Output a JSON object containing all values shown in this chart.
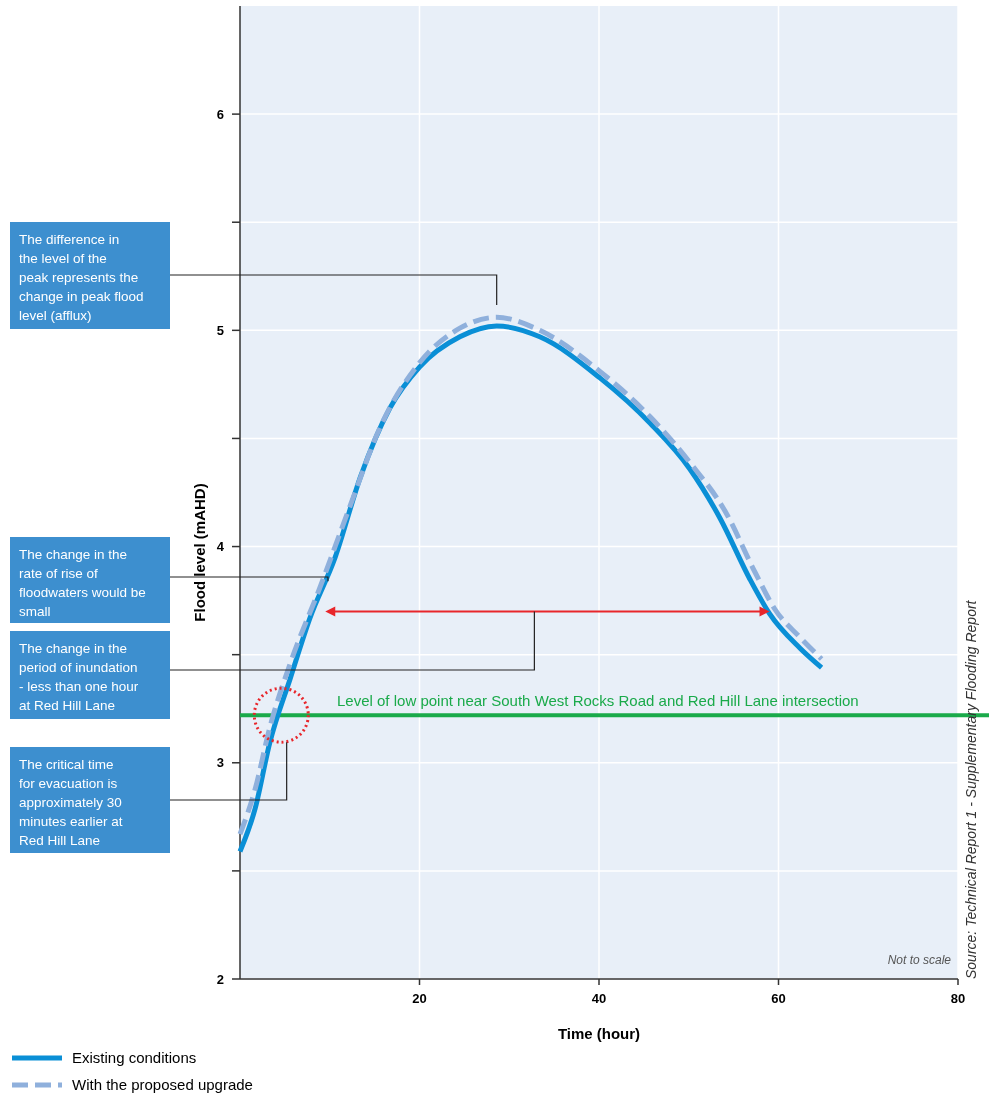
{
  "chart_data": {
    "type": "line",
    "xlabel": "Time (hour)",
    "ylabel": "Flood level (mAHD)",
    "xlim": [
      0,
      80
    ],
    "xticks": [
      20,
      40,
      60,
      80
    ],
    "ylim": [
      2,
      6.5
    ],
    "yticks": [
      2,
      {
        "value": 2.5,
        "label": null
      },
      3,
      {
        "value": 3.5,
        "label": null
      },
      4,
      {
        "value": 4.5,
        "label": null
      },
      5,
      {
        "value": 5.5,
        "label": null
      },
      6
    ],
    "grid": true,
    "legend": "bottom",
    "series": [
      {
        "name": "Existing conditions",
        "color": "#0a8fd6",
        "line_style": "solid",
        "x": [
          0,
          1.7,
          3.3,
          5.6,
          7.8,
          10.6,
          13.4,
          16.7,
          20,
          24.5,
          28.6,
          33.4,
          40.1,
          45.7,
          50.1,
          53.5,
          56.8,
          59,
          62.4,
          64.8
        ],
        "values": [
          2.59,
          2.79,
          3.09,
          3.39,
          3.67,
          3.95,
          4.32,
          4.64,
          4.83,
          4.97,
          5.02,
          4.97,
          4.78,
          4.57,
          4.36,
          4.13,
          3.85,
          3.69,
          3.53,
          3.44
        ]
      },
      {
        "name": "With the proposed upgrade",
        "color": "#8fb0dc",
        "line_style": "dashed",
        "x": [
          0,
          1.7,
          3.3,
          5.6,
          8.9,
          12.2,
          15.6,
          20,
          24.5,
          28.6,
          33.4,
          40.1,
          45.7,
          50.1,
          54.1,
          57.4,
          59.6,
          62.4,
          64.8
        ],
        "values": [
          2.67,
          2.88,
          3.16,
          3.46,
          3.81,
          4.18,
          4.55,
          4.85,
          5.01,
          5.06,
          5.0,
          4.81,
          4.6,
          4.39,
          4.16,
          3.88,
          3.71,
          3.58,
          3.48
        ]
      }
    ],
    "ref_lines": [
      {
        "axis": "y",
        "value": 3.22,
        "label": "Level of low point near South West Rocks Road and Red Hill Lane intersection",
        "color": "#1aaa4a"
      }
    ],
    "annotations": [
      "The difference in the level of the peak represents the change in peak flood level (afflux)",
      "The change in the rate of rise of floodwaters would be small",
      "The change in the period of inundation - less than one hour at Red Hill Lane",
      "The critical time for evacuation is approximately 30 minutes earlier at Red Hill Lane",
      "Not to scale",
      "Source: Technical Report 1 - Supplementary Flooding Report"
    ]
  }
}
